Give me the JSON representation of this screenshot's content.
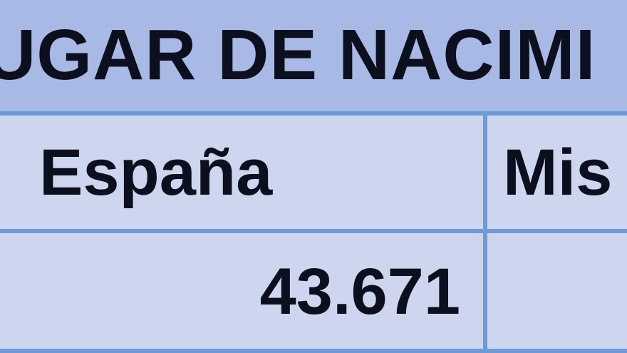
{
  "table": {
    "title": "UGAR DE NACIMI",
    "headers": [
      "España",
      "Mis"
    ],
    "rows": [
      [
        "43.671",
        ""
      ]
    ]
  },
  "colors": {
    "header_band": "#a9b9e6",
    "cell": "#cdd6ee",
    "border": "#6f9ad8",
    "text": "#0c0f1e"
  }
}
